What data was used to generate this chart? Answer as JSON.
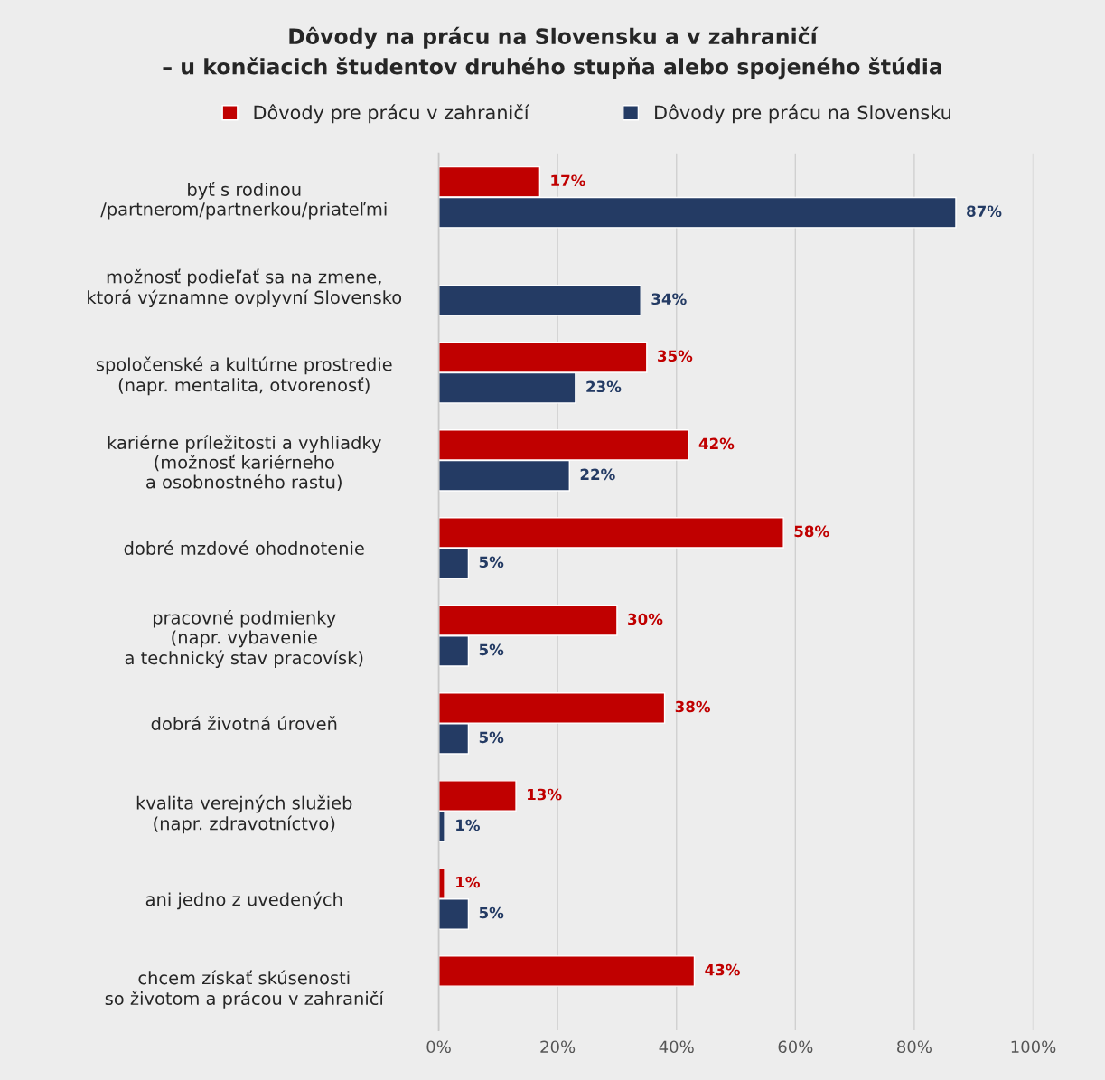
{
  "chart_data": {
    "type": "bar",
    "orientation": "horizontal",
    "title": "Dôvody na prácu na Slovensku a v zahraničí\n– u končiacich študentov druhého stupňa alebo spojeného štúdia",
    "categories": [
      "byť s rodinou\n/partnerom/partnerkou/priateľmi",
      "možnosť podieľať sa na zmene,\nktorá významne ovplyvní Slovensko",
      "spoločenské a kultúrne prostredie\n(napr. mentalita, otvorenosť)",
      "kariérne príležitosti a vyhliadky\n(možnosť kariérneho\na osobnostného rastu)",
      "dobré mzdové ohodnotenie",
      "pracovné podmienky\n(napr. vybavenie\na technický stav pracovísk)",
      "dobrá životná úroveň",
      "kvalita verejných služieb\n(napr. zdravotníctvo)",
      "ani jedno z uvedených",
      "chcem získať skúsenosti\nso životom a prácou v zahraničí"
    ],
    "series": [
      {
        "name": "Dôvody pre prácu v zahraničí",
        "color": "#c00000",
        "values": [
          17,
          null,
          35,
          42,
          58,
          30,
          38,
          13,
          1,
          43
        ],
        "value_labels": [
          "17%",
          null,
          "35%",
          "42%",
          "58%",
          "30%",
          "38%",
          "13%",
          "1%",
          "43%"
        ]
      },
      {
        "name": "Dôvody pre prácu na Slovensku",
        "color": "#243b64",
        "values": [
          87,
          34,
          23,
          22,
          5,
          5,
          5,
          1,
          5,
          null
        ],
        "value_labels": [
          "87%",
          "34%",
          "23%",
          "22%",
          "5%",
          "5%",
          "5%",
          "1%",
          "5%",
          null
        ]
      }
    ],
    "xlim": [
      0,
      100
    ],
    "xticks": [
      {
        "value": 0,
        "label": "0%"
      },
      {
        "value": 20,
        "label": "20%"
      },
      {
        "value": 40,
        "label": "40%"
      },
      {
        "value": 60,
        "label": "60%"
      },
      {
        "value": 80,
        "label": "80%"
      },
      {
        "value": 100,
        "label": "100%"
      }
    ],
    "grid": "x",
    "legend": "top"
  }
}
